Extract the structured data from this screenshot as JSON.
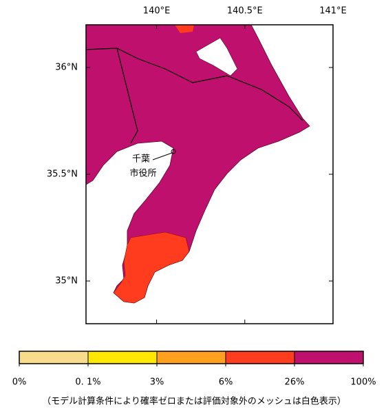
{
  "map": {
    "xlim": [
      139.6,
      141
    ],
    "ylim": [
      34.8,
      36.2
    ],
    "xticks": [
      {
        "value": 140,
        "label": "140°E"
      },
      {
        "value": 140.5,
        "label": "140.5°E"
      },
      {
        "value": 141,
        "label": "141°E"
      }
    ],
    "yticks": [
      {
        "value": 36,
        "label": "36°N"
      },
      {
        "value": 35.5,
        "label": "35.5°N"
      },
      {
        "value": 35,
        "label": "35°N"
      }
    ],
    "annotation": {
      "lines": [
        "千葉",
        "市役所"
      ]
    }
  },
  "legend": {
    "ticks": [
      {
        "value": 0,
        "label": "0%"
      },
      {
        "value": 0.1,
        "label": "0. 1%"
      },
      {
        "value": 3,
        "label": "3%"
      },
      {
        "value": 6,
        "label": "6%"
      },
      {
        "value": 26,
        "label": "26%"
      },
      {
        "value": 100,
        "label": "100%"
      }
    ],
    "colors": [
      "#f8dc8c",
      "#ffe800",
      "#ffa01e",
      "#ff3c1e",
      "#c0106e"
    ],
    "note": "（モデル計算条件により確率ゼロまたは評価対象外のメッシュは白色表示）"
  }
}
